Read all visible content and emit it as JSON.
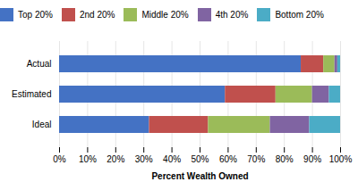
{
  "chart_data": {
    "type": "bar",
    "orientation": "horizontal",
    "stacked": true,
    "categories": [
      "Ideal",
      "Estimated",
      "Actual"
    ],
    "series": [
      {
        "name": "Top 20%",
        "color": "#4472C4",
        "values": [
          32,
          59,
          86
        ]
      },
      {
        "name": "2nd 20%",
        "color": "#C0504D",
        "values": [
          21,
          18,
          8
        ]
      },
      {
        "name": "Middle 20%",
        "color": "#9BBB59",
        "values": [
          22,
          13,
          4
        ]
      },
      {
        "name": "4th 20%",
        "color": "#8064A2",
        "values": [
          14,
          6,
          1
        ]
      },
      {
        "name": "Bottom 20%",
        "color": "#4BACC6",
        "values": [
          11,
          4,
          1
        ]
      }
    ],
    "xlabel": "Percent Wealth Owned",
    "xlim": [
      0,
      100
    ],
    "xticks": [
      {
        "value": 0,
        "label": "0%"
      },
      {
        "value": 10,
        "label": "10%"
      },
      {
        "value": 20,
        "label": "20%"
      },
      {
        "value": 30,
        "label": "30%"
      },
      {
        "value": 40,
        "label": "40%"
      },
      {
        "value": 50,
        "label": "50%"
      },
      {
        "value": 60,
        "label": "60%"
      },
      {
        "value": 70,
        "label": "70%"
      },
      {
        "value": 80,
        "label": "80%"
      },
      {
        "value": 90,
        "label": "90%"
      },
      {
        "value": 100,
        "label": "100%"
      }
    ],
    "grid": true,
    "legend": "top"
  }
}
